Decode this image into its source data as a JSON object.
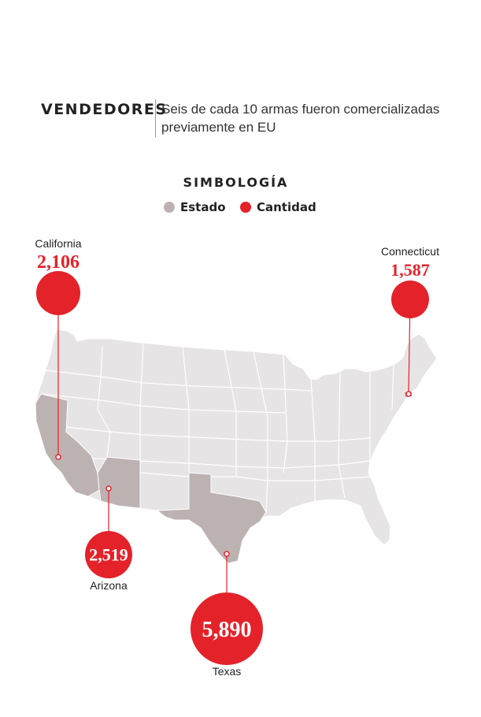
{
  "header": {
    "kicker": "VENDEDORES",
    "subtitle": "Seis de cada 10 armas fueron comercializadas previamente en EU"
  },
  "legend": {
    "title": "SIMBOLOGÍA",
    "items": [
      {
        "label": "Estado",
        "color": "#bdb2b2"
      },
      {
        "label": "Cantidad",
        "color": "#e4222a"
      }
    ]
  },
  "colors": {
    "land": "#e6e4e4",
    "border": "#ffffff",
    "highlight": "#bdb2b2",
    "accent": "#e4222a"
  },
  "states": [
    {
      "name": "California",
      "amount": "2,106",
      "value": 2106
    },
    {
      "name": "Connecticut",
      "amount": "1,587",
      "value": 1587
    },
    {
      "name": "Arizona",
      "amount": "2,519",
      "value": 2519
    },
    {
      "name": "Texas",
      "amount": "5,890",
      "value": 5890
    }
  ]
}
